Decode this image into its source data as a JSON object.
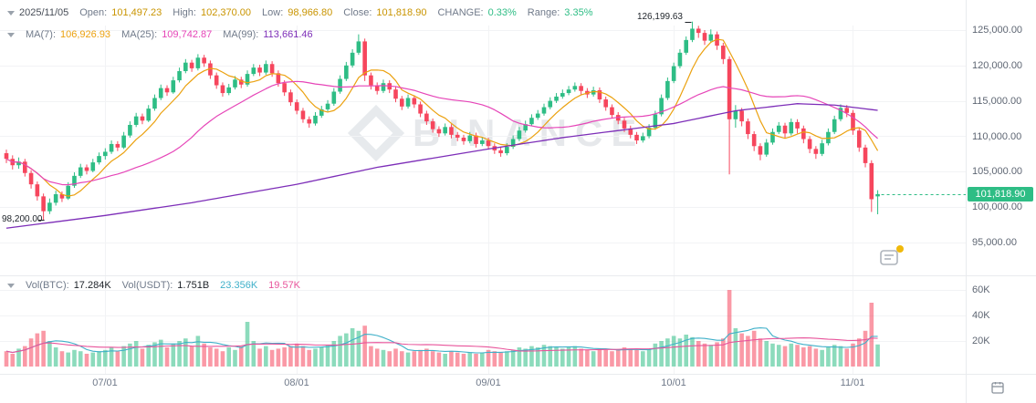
{
  "header": {
    "date": "2025/11/05",
    "open_label": "Open:",
    "open": "101,497.23",
    "high_label": "High:",
    "high": "102,370.00",
    "low_label": "Low:",
    "low": "98,966.80",
    "close_label": "Close:",
    "close": "101,818.90",
    "change_label": "CHANGE:",
    "change": "0.33%",
    "range_label": "Range:",
    "range": "3.35%"
  },
  "ma": {
    "ma7_label": "MA(7):",
    "ma7": "106,926.93",
    "ma25_label": "MA(25):",
    "ma25": "109,742.87",
    "ma99_label": "MA(99):",
    "ma99": "113,661.46"
  },
  "volume_header": {
    "btc_label": "Vol(BTC):",
    "btc": "17.284K",
    "usdt_label": "Vol(USDT):",
    "usdt": "1.751B",
    "ma_fast": "23.356K",
    "ma_slow": "19.57K"
  },
  "axes": {
    "price": [
      "125,000.00",
      "120,000.00",
      "115,000.00",
      "110,000.00",
      "105,000.00",
      "100,000.00",
      "95,000.00"
    ],
    "volume": [
      "60K",
      "40K",
      "20K"
    ],
    "time": [
      "07/01",
      "08/01",
      "09/01",
      "10/01",
      "11/01"
    ]
  },
  "markers": {
    "range_high": "126,199.63",
    "range_low": "98,200.00",
    "last_price": "101,818.90"
  },
  "watermark": {
    "text": "BINANCE"
  },
  "colors": {
    "up": "#2EBD85",
    "down": "#F6465D",
    "ma7": "#EBA10F",
    "ma25": "#E645B8",
    "ma99": "#7D2EB8",
    "vol_ma_fast": "#3FB0C9",
    "vol_ma_slow": "#E8549B",
    "ohlc_value": "#C99400",
    "last_price_bg": "#2EBD85",
    "grid": "#F2F3F5",
    "divider": "#E9EBEE",
    "notification_dot": "#F0B90B"
  },
  "chart_data": {
    "type": "candlestick",
    "note": "daily candles; values are [open, high, low, close, volume]; price unit = thousand USDT, volume unit = thousand BTC",
    "price_gridlines": [
      125,
      120,
      115,
      110,
      105,
      100,
      95
    ],
    "volume_gridlines": [
      60,
      40,
      20
    ],
    "x_tick_labels": [
      "07/01",
      "08/01",
      "09/01",
      "10/01",
      "11/01"
    ],
    "x_tick_indices": [
      16,
      47,
      78,
      108,
      137
    ],
    "last_price": 101.819,
    "range_high": 126.1996,
    "range_high_index": 111,
    "range_low": 98.2,
    "range_low_index": 6,
    "ma99_waypoints": [
      [
        0,
        97.0
      ],
      [
        16,
        98.8
      ],
      [
        30,
        100.6
      ],
      [
        47,
        103.2
      ],
      [
        60,
        105.6
      ],
      [
        78,
        108.2
      ],
      [
        90,
        109.8
      ],
      [
        108,
        111.8
      ],
      [
        118,
        113.6
      ],
      [
        128,
        114.6
      ],
      [
        134,
        114.4
      ],
      [
        141,
        113.66
      ]
    ],
    "candles": [
      [
        107.6,
        108.1,
        106.2,
        106.8,
        12
      ],
      [
        106.8,
        107.3,
        105.3,
        105.9,
        10
      ],
      [
        105.9,
        107.0,
        105.4,
        106.4,
        14
      ],
      [
        106.4,
        106.8,
        104.3,
        104.8,
        16
      ],
      [
        104.8,
        105.2,
        102.6,
        103.2,
        22
      ],
      [
        103.2,
        103.6,
        100.9,
        101.5,
        26
      ],
      [
        101.5,
        101.9,
        98.2,
        99.4,
        28
      ],
      [
        99.4,
        101.2,
        99.0,
        100.6,
        20
      ],
      [
        100.6,
        102.3,
        100.2,
        101.8,
        15
      ],
      [
        101.8,
        102.2,
        100.7,
        101.2,
        12
      ],
      [
        101.2,
        103.5,
        101.0,
        103.0,
        11
      ],
      [
        103.0,
        104.9,
        102.7,
        104.4,
        13
      ],
      [
        104.4,
        106.1,
        104.1,
        105.6,
        12
      ],
      [
        105.6,
        106.0,
        104.6,
        105.1,
        10
      ],
      [
        105.1,
        106.8,
        104.9,
        106.3,
        11
      ],
      [
        106.3,
        107.7,
        106.0,
        107.2,
        12
      ],
      [
        107.2,
        108.3,
        106.7,
        107.8,
        13
      ],
      [
        107.8,
        109.4,
        107.5,
        108.9,
        15
      ],
      [
        108.9,
        109.3,
        107.9,
        108.4,
        12
      ],
      [
        108.4,
        110.6,
        108.2,
        110.1,
        16
      ],
      [
        110.1,
        112.1,
        109.8,
        111.6,
        18
      ],
      [
        111.6,
        113.3,
        111.3,
        112.8,
        20
      ],
      [
        112.8,
        113.2,
        111.7,
        112.2,
        14
      ],
      [
        112.2,
        114.4,
        112.0,
        113.9,
        17
      ],
      [
        113.9,
        115.9,
        113.6,
        115.4,
        19
      ],
      [
        115.4,
        117.3,
        115.1,
        116.8,
        21
      ],
      [
        116.8,
        117.2,
        115.7,
        116.2,
        15
      ],
      [
        116.2,
        118.4,
        116.0,
        117.9,
        18
      ],
      [
        117.9,
        119.7,
        117.6,
        119.2,
        20
      ],
      [
        119.2,
        120.9,
        118.9,
        120.4,
        22
      ],
      [
        120.4,
        120.8,
        119.1,
        119.6,
        16
      ],
      [
        119.6,
        121.6,
        119.3,
        121.1,
        24
      ],
      [
        121.1,
        121.5,
        119.8,
        120.3,
        18
      ],
      [
        120.3,
        120.7,
        118.1,
        118.6,
        15
      ],
      [
        118.6,
        119.0,
        116.7,
        117.2,
        14
      ],
      [
        117.2,
        117.6,
        115.6,
        116.1,
        12
      ],
      [
        116.1,
        117.4,
        115.8,
        116.9,
        15
      ],
      [
        116.9,
        118.5,
        116.6,
        118.0,
        13
      ],
      [
        118.0,
        118.4,
        116.8,
        117.3,
        16
      ],
      [
        117.3,
        119.3,
        117.0,
        118.8,
        35
      ],
      [
        118.8,
        120.2,
        118.5,
        119.7,
        20
      ],
      [
        119.7,
        120.1,
        118.5,
        119.0,
        14
      ],
      [
        119.0,
        120.7,
        118.7,
        120.2,
        16
      ],
      [
        120.2,
        120.6,
        118.4,
        118.9,
        13
      ],
      [
        118.9,
        119.3,
        117.0,
        117.5,
        14
      ],
      [
        117.5,
        117.9,
        115.7,
        116.2,
        15
      ],
      [
        116.2,
        116.6,
        114.3,
        114.8,
        16
      ],
      [
        114.8,
        115.2,
        113.1,
        113.6,
        18
      ],
      [
        113.6,
        114.0,
        111.9,
        112.4,
        16
      ],
      [
        112.4,
        112.8,
        111.2,
        111.8,
        13
      ],
      [
        111.8,
        113.4,
        111.5,
        112.9,
        14
      ],
      [
        112.9,
        114.3,
        112.6,
        113.8,
        15
      ],
      [
        113.8,
        115.1,
        113.5,
        114.6,
        17
      ],
      [
        114.6,
        116.8,
        114.3,
        116.3,
        20
      ],
      [
        116.3,
        118.6,
        116.0,
        118.1,
        24
      ],
      [
        118.1,
        120.5,
        117.8,
        120.0,
        26
      ],
      [
        120.0,
        122.3,
        119.7,
        121.8,
        30
      ],
      [
        121.8,
        124.4,
        121.5,
        123.4,
        28
      ],
      [
        123.4,
        123.8,
        117.8,
        118.6,
        32
      ],
      [
        118.6,
        119.0,
        116.6,
        117.2,
        16
      ],
      [
        117.2,
        117.6,
        115.9,
        116.4,
        14
      ],
      [
        116.4,
        118.0,
        116.1,
        117.5,
        13
      ],
      [
        117.5,
        117.9,
        116.1,
        116.6,
        12
      ],
      [
        116.6,
        117.0,
        114.8,
        115.3,
        14
      ],
      [
        115.3,
        115.7,
        113.7,
        114.2,
        12
      ],
      [
        114.2,
        115.9,
        113.9,
        115.4,
        11
      ],
      [
        115.4,
        115.8,
        114.0,
        114.5,
        12
      ],
      [
        114.5,
        114.9,
        112.7,
        113.2,
        13
      ],
      [
        113.2,
        113.6,
        111.6,
        112.1,
        14
      ],
      [
        112.1,
        112.5,
        110.5,
        111.0,
        12
      ],
      [
        111.0,
        111.4,
        109.9,
        110.4,
        11
      ],
      [
        110.4,
        111.8,
        110.1,
        111.3,
        10
      ],
      [
        111.3,
        111.7,
        109.7,
        110.2,
        12
      ],
      [
        110.2,
        110.6,
        109.3,
        109.8,
        11
      ],
      [
        109.8,
        110.2,
        108.8,
        109.3,
        10
      ],
      [
        109.3,
        110.6,
        109.0,
        110.1,
        11
      ],
      [
        110.1,
        110.5,
        108.4,
        108.9,
        10
      ],
      [
        108.9,
        109.9,
        108.6,
        109.4,
        11
      ],
      [
        109.4,
        109.8,
        108.1,
        108.6,
        13
      ],
      [
        108.6,
        109.0,
        107.5,
        108.0,
        12
      ],
      [
        108.0,
        108.4,
        107.1,
        107.6,
        11
      ],
      [
        107.6,
        109.0,
        107.3,
        108.5,
        12
      ],
      [
        108.5,
        110.1,
        108.2,
        109.6,
        13
      ],
      [
        109.6,
        111.3,
        109.3,
        110.8,
        15
      ],
      [
        110.8,
        112.2,
        110.5,
        111.7,
        14
      ],
      [
        111.7,
        113.1,
        111.4,
        112.6,
        16
      ],
      [
        112.6,
        113.7,
        112.3,
        113.2,
        15
      ],
      [
        113.2,
        114.6,
        112.9,
        114.1,
        17
      ],
      [
        114.1,
        115.5,
        113.8,
        115.0,
        16
      ],
      [
        115.0,
        116.1,
        114.7,
        115.6,
        15
      ],
      [
        115.6,
        116.6,
        115.3,
        116.1,
        14
      ],
      [
        116.1,
        117.1,
        115.8,
        116.6,
        15
      ],
      [
        116.6,
        117.6,
        116.3,
        117.1,
        16
      ],
      [
        117.1,
        117.5,
        115.9,
        116.4,
        14
      ],
      [
        116.4,
        116.8,
        115.4,
        115.9,
        13
      ],
      [
        115.9,
        117.0,
        115.6,
        116.5,
        12
      ],
      [
        116.5,
        116.9,
        114.7,
        115.2,
        14
      ],
      [
        115.2,
        115.6,
        113.6,
        114.1,
        13
      ],
      [
        114.1,
        114.5,
        112.5,
        113.0,
        12
      ],
      [
        113.0,
        113.4,
        111.7,
        112.2,
        13
      ],
      [
        112.2,
        112.6,
        110.6,
        111.1,
        15
      ],
      [
        111.1,
        111.5,
        109.7,
        110.2,
        14
      ],
      [
        110.2,
        110.6,
        108.9,
        109.4,
        13
      ],
      [
        109.4,
        110.5,
        109.1,
        110.0,
        12
      ],
      [
        110.0,
        111.7,
        109.7,
        111.2,
        14
      ],
      [
        111.2,
        113.6,
        110.9,
        113.1,
        18
      ],
      [
        113.1,
        115.9,
        112.8,
        115.4,
        20
      ],
      [
        115.4,
        118.3,
        115.1,
        117.8,
        22
      ],
      [
        117.8,
        120.4,
        117.5,
        119.9,
        24
      ],
      [
        119.9,
        122.3,
        119.6,
        121.8,
        22
      ],
      [
        121.8,
        124.1,
        121.5,
        123.6,
        25
      ],
      [
        123.6,
        126.2,
        123.3,
        125.2,
        23
      ],
      [
        125.2,
        125.6,
        123.9,
        124.6,
        20
      ],
      [
        124.6,
        125.0,
        122.9,
        123.5,
        18
      ],
      [
        123.5,
        125.1,
        123.2,
        124.4,
        17
      ],
      [
        124.4,
        124.8,
        122.2,
        122.8,
        19
      ],
      [
        122.8,
        123.2,
        120.2,
        120.9,
        22
      ],
      [
        120.9,
        121.3,
        104.6,
        112.4,
        60
      ],
      [
        112.4,
        114.4,
        111.2,
        113.6,
        30
      ],
      [
        113.6,
        114.0,
        111.4,
        112.1,
        26
      ],
      [
        112.1,
        112.5,
        109.6,
        110.3,
        24
      ],
      [
        110.3,
        110.7,
        107.9,
        108.6,
        28
      ],
      [
        108.6,
        109.0,
        106.6,
        107.4,
        22
      ],
      [
        107.4,
        109.6,
        107.1,
        109.1,
        20
      ],
      [
        109.1,
        111.1,
        108.8,
        110.6,
        18
      ],
      [
        110.6,
        112.0,
        110.3,
        111.5,
        17
      ],
      [
        111.5,
        111.9,
        109.8,
        110.4,
        16
      ],
      [
        110.4,
        112.5,
        110.1,
        112.0,
        18
      ],
      [
        112.0,
        112.4,
        110.4,
        111.1,
        17
      ],
      [
        111.1,
        111.5,
        109.0,
        109.6,
        15
      ],
      [
        109.6,
        110.0,
        107.6,
        108.2,
        16
      ],
      [
        108.2,
        108.6,
        106.8,
        107.5,
        14
      ],
      [
        107.5,
        109.5,
        107.2,
        109.0,
        13
      ],
      [
        109.0,
        111.1,
        108.7,
        110.6,
        15
      ],
      [
        110.6,
        112.9,
        110.3,
        112.4,
        17
      ],
      [
        112.4,
        114.5,
        112.1,
        114.0,
        16
      ],
      [
        114.0,
        114.4,
        112.7,
        113.3,
        14
      ],
      [
        113.3,
        113.7,
        110.2,
        110.8,
        18
      ],
      [
        110.8,
        111.2,
        107.8,
        108.4,
        22
      ],
      [
        108.4,
        108.8,
        105.6,
        106.2,
        28
      ],
      [
        106.2,
        106.6,
        99.3,
        101.1,
        50
      ],
      [
        101.497,
        102.37,
        98.967,
        101.819,
        17.3
      ]
    ]
  }
}
